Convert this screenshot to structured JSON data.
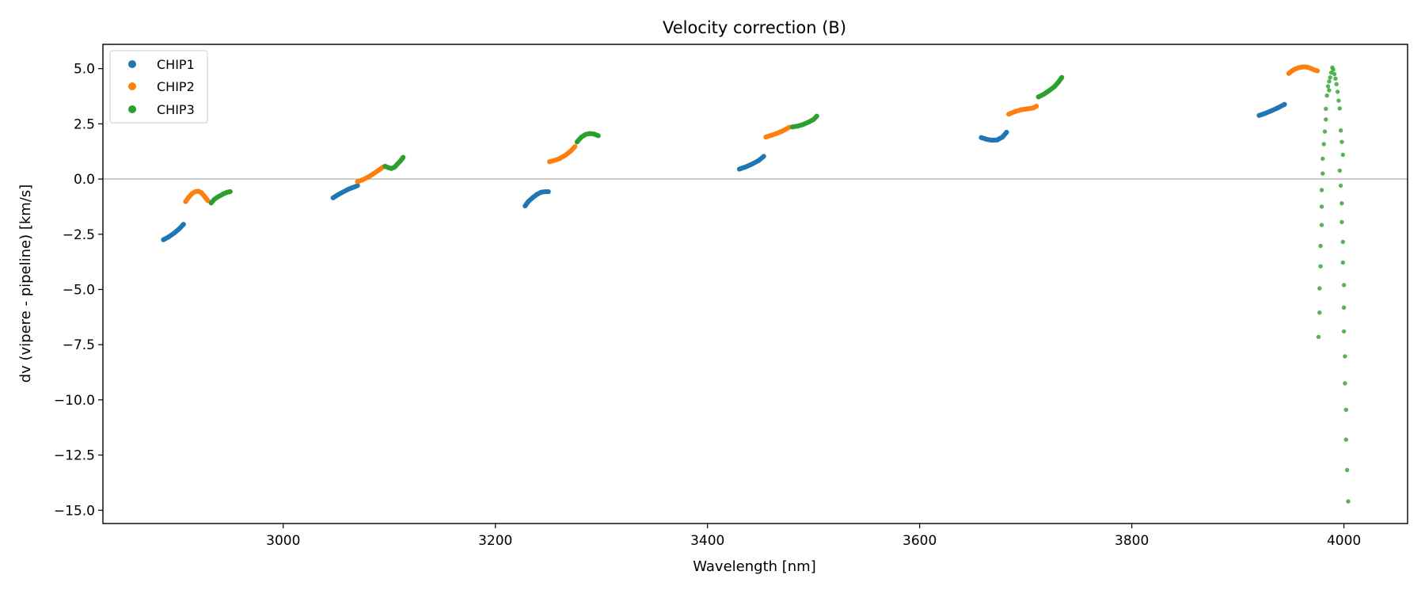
{
  "chart_data": {
    "type": "scatter",
    "title": "Velocity correction (B)",
    "xlabel": "Wavelength [nm]",
    "ylabel": "dv (vipere - pipeline) [km/s]",
    "xlim": [
      2830,
      4060
    ],
    "ylim": [
      -15.6,
      6.1
    ],
    "xticks": [
      3000,
      3200,
      3400,
      3600,
      3800,
      4000
    ],
    "xtick_labels": [
      "3000",
      "3200",
      "3400",
      "3600",
      "3800",
      "4000"
    ],
    "yticks": [
      5.0,
      2.5,
      0.0,
      -2.5,
      -5.0,
      -7.5,
      -10.0,
      -12.5,
      -15.0
    ],
    "ytick_labels": [
      "5.0",
      "2.5",
      "0.0",
      "−2.5",
      "−5.0",
      "−7.5",
      "−10.0",
      "−12.5",
      "−15.0"
    ],
    "reference_line_y": 0.0,
    "legend": {
      "location": "top-left",
      "entries": [
        "CHIP1",
        "CHIP2",
        "CHIP3"
      ]
    },
    "series": [
      {
        "name": "CHIP1",
        "color": "#1f77b4",
        "segments": [
          [
            [
              2887,
              -2.75
            ],
            [
              2892,
              -2.62
            ],
            [
              2897,
              -2.45
            ],
            [
              2902,
              -2.25
            ],
            [
              2906,
              -2.05
            ]
          ],
          [
            [
              3047,
              -0.85
            ],
            [
              3052,
              -0.7
            ],
            [
              3057,
              -0.57
            ],
            [
              3062,
              -0.45
            ],
            [
              3067,
              -0.36
            ],
            [
              3070,
              -0.3
            ]
          ],
          [
            [
              3228,
              -1.22
            ],
            [
              3231,
              -1.02
            ],
            [
              3235,
              -0.85
            ],
            [
              3239,
              -0.7
            ],
            [
              3243,
              -0.6
            ],
            [
              3247,
              -0.57
            ],
            [
              3250,
              -0.57
            ]
          ],
          [
            [
              3430,
              0.45
            ],
            [
              3436,
              0.55
            ],
            [
              3442,
              0.68
            ],
            [
              3448,
              0.83
            ],
            [
              3453,
              1.03
            ]
          ],
          [
            [
              3658,
              1.88
            ],
            [
              3663,
              1.8
            ],
            [
              3668,
              1.76
            ],
            [
              3673,
              1.77
            ],
            [
              3678,
              1.9
            ],
            [
              3682,
              2.12
            ]
          ],
          [
            [
              3920,
              2.88
            ],
            [
              3926,
              2.98
            ],
            [
              3932,
              3.1
            ],
            [
              3938,
              3.23
            ],
            [
              3944,
              3.38
            ]
          ]
        ]
      },
      {
        "name": "CHIP2",
        "color": "#ff7f0e",
        "segments": [
          [
            [
              2908,
              -1.02
            ],
            [
              2911,
              -0.82
            ],
            [
              2914,
              -0.66
            ],
            [
              2917,
              -0.57
            ],
            [
              2920,
              -0.55
            ],
            [
              2923,
              -0.62
            ],
            [
              2926,
              -0.8
            ],
            [
              2929,
              -0.98
            ]
          ],
          [
            [
              3070,
              -0.12
            ],
            [
              3075,
              -0.03
            ],
            [
              3080,
              0.09
            ],
            [
              3085,
              0.24
            ],
            [
              3090,
              0.4
            ],
            [
              3094,
              0.54
            ]
          ],
          [
            [
              3251,
              0.78
            ],
            [
              3256,
              0.85
            ],
            [
              3261,
              0.94
            ],
            [
              3266,
              1.08
            ],
            [
              3271,
              1.27
            ],
            [
              3275,
              1.47
            ]
          ],
          [
            [
              3455,
              1.9
            ],
            [
              3460,
              1.98
            ],
            [
              3465,
              2.06
            ],
            [
              3470,
              2.16
            ],
            [
              3474,
              2.26
            ],
            [
              3477,
              2.34
            ]
          ],
          [
            [
              3684,
              2.94
            ],
            [
              3690,
              3.06
            ],
            [
              3696,
              3.14
            ],
            [
              3702,
              3.18
            ],
            [
              3707,
              3.22
            ],
            [
              3710,
              3.3
            ]
          ],
          [
            [
              3948,
              4.78
            ],
            [
              3951,
              4.9
            ],
            [
              3954,
              4.98
            ],
            [
              3957,
              5.04
            ],
            [
              3960,
              5.07
            ],
            [
              3963,
              5.08
            ],
            [
              3966,
              5.06
            ],
            [
              3969,
              5.01
            ],
            [
              3972,
              4.94
            ],
            [
              3975,
              4.9
            ]
          ]
        ]
      },
      {
        "name": "CHIP3",
        "color": "#2ca02c",
        "segments": [
          [
            [
              2932,
              -1.08
            ],
            [
              2935,
              -0.92
            ],
            [
              2938,
              -0.82
            ],
            [
              2941,
              -0.74
            ],
            [
              2944,
              -0.66
            ],
            [
              2947,
              -0.6
            ],
            [
              2950,
              -0.57
            ]
          ],
          [
            [
              3096,
              0.58
            ],
            [
              3099,
              0.52
            ],
            [
              3102,
              0.48
            ],
            [
              3105,
              0.54
            ],
            [
              3108,
              0.7
            ],
            [
              3111,
              0.85
            ],
            [
              3113,
              0.98
            ]
          ],
          [
            [
              3277,
              1.68
            ],
            [
              3281,
              1.9
            ],
            [
              3285,
              2.02
            ],
            [
              3289,
              2.06
            ],
            [
              3293,
              2.04
            ],
            [
              3297,
              1.96
            ]
          ],
          [
            [
              3480,
              2.36
            ],
            [
              3485,
              2.4
            ],
            [
              3490,
              2.47
            ],
            [
              3495,
              2.57
            ],
            [
              3500,
              2.7
            ],
            [
              3503,
              2.85
            ]
          ],
          [
            [
              3712,
              3.72
            ],
            [
              3717,
              3.84
            ],
            [
              3722,
              4.0
            ],
            [
              3727,
              4.18
            ],
            [
              3731,
              4.4
            ],
            [
              3734,
              4.6
            ]
          ]
        ],
        "sparse_points": [
          [
            3989,
            5.05
          ],
          [
            3990,
            4.95
          ],
          [
            3988,
            4.82
          ],
          [
            3991,
            4.75
          ],
          [
            3987,
            4.6
          ],
          [
            3992,
            4.55
          ],
          [
            3986,
            4.42
          ],
          [
            3993,
            4.3
          ],
          [
            3985,
            4.2
          ],
          [
            3986,
            4.02
          ],
          [
            3994,
            3.95
          ],
          [
            3984,
            3.78
          ],
          [
            3995,
            3.55
          ],
          [
            3983,
            3.18
          ],
          [
            3996,
            3.2
          ],
          [
            3983,
            2.7
          ],
          [
            3997,
            2.2
          ],
          [
            3982,
            2.15
          ],
          [
            3998,
            1.68
          ],
          [
            3981,
            1.58
          ],
          [
            3980,
            0.92
          ],
          [
            3999,
            1.1
          ],
          [
            3980,
            0.25
          ],
          [
            3996,
            0.38
          ],
          [
            3979,
            -0.5
          ],
          [
            3997,
            -0.3
          ],
          [
            3979,
            -1.25
          ],
          [
            3998,
            -1.1
          ],
          [
            3979,
            -2.08
          ],
          [
            3998,
            -1.95
          ],
          [
            3978,
            -3.03
          ],
          [
            3999,
            -2.85
          ],
          [
            3978,
            -3.95
          ],
          [
            3999,
            -3.78
          ],
          [
            3977,
            -4.95
          ],
          [
            4000,
            -4.8
          ],
          [
            3977,
            -6.05
          ],
          [
            4000,
            -5.82
          ],
          [
            3976,
            -7.15
          ],
          [
            4000,
            -6.9
          ],
          [
            4001,
            -8.03
          ],
          [
            4001,
            -9.25
          ],
          [
            4002,
            -10.45
          ],
          [
            4002,
            -11.8
          ],
          [
            4003,
            -13.18
          ],
          [
            4004,
            -14.6
          ]
        ]
      }
    ]
  }
}
